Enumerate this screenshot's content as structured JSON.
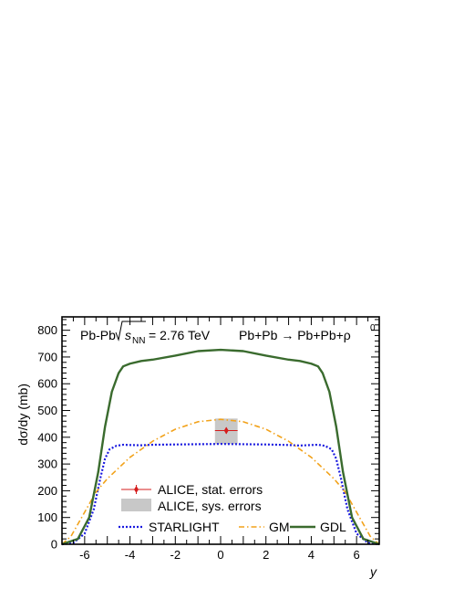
{
  "chart_data": {
    "type": "line",
    "title_left": "Pb-Pb",
    "title_energy_value": "= 2.76 TeV",
    "title_sqrt_s": "s",
    "title_sqrt_sub": "NN",
    "title_reaction": "Pb+Pb → Pb+Pb+ρ",
    "title_reaction_sup": "0",
    "xlabel": "y",
    "ylabel": "dσ/dy (mb)",
    "xlim": [
      -7,
      7
    ],
    "ylim": [
      0,
      850
    ],
    "x_ticks": [
      -6,
      -4,
      -2,
      0,
      2,
      4,
      6
    ],
    "y_ticks": [
      0,
      100,
      200,
      300,
      400,
      500,
      600,
      700,
      800
    ],
    "grid": false,
    "legend_position": "bottom-center",
    "series": [
      {
        "name": "STARLIGHT",
        "style": "dotted",
        "color": "#1a1adf",
        "x": [
          -7,
          -6.5,
          -6,
          -5.6,
          -5.3,
          -5.1,
          -4.9,
          -4.6,
          -4.3,
          -4,
          -3.5,
          -3,
          -2,
          -1,
          0,
          1,
          2,
          3,
          3.5,
          4,
          4.3,
          4.6,
          4.9,
          5.1,
          5.3,
          5.6,
          6,
          6.5,
          7
        ],
        "y": [
          0,
          5,
          40,
          130,
          250,
          320,
          355,
          368,
          372,
          371,
          370,
          372,
          373,
          374,
          375,
          374,
          373,
          371,
          369,
          371,
          372,
          368,
          355,
          320,
          250,
          130,
          40,
          5,
          0
        ]
      },
      {
        "name": "GM",
        "style": "dash-dot",
        "color": "#f2a21a",
        "x": [
          -7,
          -6.6,
          -6,
          -5.5,
          -5,
          -4,
          -3,
          -2,
          -1,
          0,
          1,
          2,
          3,
          4,
          5,
          5.5,
          6,
          6.6,
          7
        ],
        "y": [
          0,
          30,
          120,
          195,
          245,
          325,
          385,
          430,
          458,
          467,
          458,
          430,
          385,
          325,
          245,
          195,
          120,
          30,
          0
        ]
      },
      {
        "name": "GDL",
        "style": "solid",
        "color": "#3a6b2e",
        "x": [
          -7,
          -6.3,
          -5.8,
          -5.4,
          -5.1,
          -4.8,
          -4.5,
          -4.3,
          -4,
          -3.5,
          -3,
          -2,
          -1,
          0,
          1,
          2,
          3,
          3.5,
          4,
          4.3,
          4.5,
          4.8,
          5.1,
          5.4,
          5.8,
          6.3,
          7
        ],
        "y": [
          0,
          20,
          100,
          270,
          440,
          570,
          640,
          665,
          675,
          685,
          690,
          705,
          722,
          727,
          722,
          705,
          690,
          685,
          675,
          665,
          640,
          570,
          440,
          270,
          100,
          20,
          0
        ]
      }
    ],
    "measurement": {
      "label_stat": "ALICE, stat. errors",
      "label_sys": "ALICE, sys. errors",
      "x": 0.25,
      "y": 425,
      "stat_err": 12,
      "x_err": 0.5,
      "sys_low": 375,
      "sys_high": 470,
      "marker_color": "#d51c1c",
      "sys_color": "#c8c8c8"
    }
  }
}
